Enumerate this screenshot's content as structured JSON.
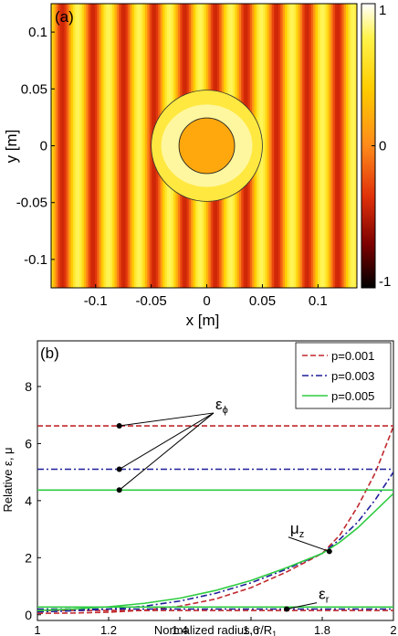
{
  "chart_data": [
    {
      "type": "heatmap",
      "panel_label": "(a)",
      "xlabel": "x [m]",
      "ylabel": "y [m]",
      "xlim": [
        -0.14,
        0.135
      ],
      "ylim": [
        -0.125,
        0.125
      ],
      "x_ticks": [
        -0.1,
        -0.05,
        0,
        0.05,
        0.1
      ],
      "x_tick_labels": [
        "-0.1",
        "-0.05",
        "0",
        "0.05",
        "0.1"
      ],
      "y_ticks": [
        0.1,
        0.05,
        0,
        -0.05,
        -0.1
      ],
      "y_tick_labels": [
        "0.1",
        "0.05",
        "0",
        "-0.05",
        "-0.1"
      ],
      "colorbar": {
        "range": [
          -1,
          1
        ],
        "ticks": [
          1,
          0,
          -1
        ],
        "tick_labels": [
          "1",
          "0",
          "-1"
        ],
        "colors": [
          "#ffffff",
          "#fff34a",
          "#ffcc00",
          "#ff8a1a",
          "#e0300a",
          "#7a0000",
          "#000000"
        ]
      },
      "wave_wavelength_m": 0.0275,
      "wave_phase_m": -0.006,
      "cloak_outer_radius_m": 0.05,
      "cloak_inner_radius_m": 0.025,
      "inner_region_value": 0.15
    },
    {
      "type": "line",
      "panel_label": "(b)",
      "xlabel": "Normalized radius, r/R",
      "xlabel_sub": "1",
      "ylabel": "Relative ε, μ",
      "xlim": [
        1,
        2
      ],
      "ylim": [
        -0.2,
        9.6
      ],
      "x_ticks": [
        1,
        1.2,
        1.4,
        1.6,
        1.8,
        2
      ],
      "x_tick_labels": [
        "1",
        "1.2",
        "1.4",
        "1.6",
        "1.8",
        "2"
      ],
      "y_ticks": [
        0,
        2,
        4,
        6,
        8
      ],
      "y_tick_labels": [
        "0",
        "2",
        "4",
        "6",
        "8"
      ],
      "legend_position": "top-right",
      "series": [
        {
          "name": "p=0.001",
          "color": "#c0282d",
          "dash": "dashed",
          "eps_phi": 6.62,
          "eps_r": 0.15,
          "mu_z_x": [
            1,
            1.1,
            1.2,
            1.3,
            1.4,
            1.5,
            1.6,
            1.7,
            1.8,
            1.85,
            1.9,
            1.95,
            2
          ],
          "mu_z_y": [
            0.05,
            0.06,
            0.09,
            0.16,
            0.3,
            0.55,
            0.95,
            1.5,
            2.15,
            2.8,
            3.8,
            5.0,
            6.6
          ]
        },
        {
          "name": "p=0.003",
          "color": "#1f1f9a",
          "dash": "dashdot",
          "eps_phi": 5.1,
          "eps_r": 0.2,
          "mu_z_x": [
            1,
            1.1,
            1.2,
            1.3,
            1.4,
            1.5,
            1.6,
            1.7,
            1.8,
            1.85,
            1.9,
            1.95,
            2
          ],
          "mu_z_y": [
            0.1,
            0.14,
            0.2,
            0.3,
            0.48,
            0.75,
            1.12,
            1.6,
            2.15,
            2.65,
            3.25,
            4.05,
            5.0
          ]
        },
        {
          "name": "p=0.005",
          "color": "#2ecc40",
          "dash": "solid",
          "eps_phi": 4.37,
          "eps_r": 0.27,
          "mu_z_x": [
            1,
            1.1,
            1.2,
            1.3,
            1.4,
            1.5,
            1.6,
            1.7,
            1.8,
            1.85,
            1.9,
            1.95,
            2
          ],
          "mu_z_y": [
            0.15,
            0.2,
            0.28,
            0.4,
            0.58,
            0.85,
            1.2,
            1.65,
            2.15,
            2.55,
            3.05,
            3.65,
            4.25
          ]
        }
      ],
      "annotations": [
        {
          "label": "ε",
          "sub": "ϕ",
          "text_x": 1.5,
          "text_y": 7.2,
          "targets": [
            [
              1.23,
              6.62
            ],
            [
              1.23,
              5.1
            ],
            [
              1.23,
              4.37
            ]
          ]
        },
        {
          "label": "μ",
          "sub": "z",
          "text_x": 1.71,
          "text_y": 2.85,
          "targets": [
            [
              1.82,
              2.22
            ]
          ]
        },
        {
          "label": "ε",
          "sub": "r",
          "text_x": 1.79,
          "text_y": 0.55,
          "targets": [
            [
              1.7,
              0.2
            ]
          ]
        }
      ]
    }
  ]
}
